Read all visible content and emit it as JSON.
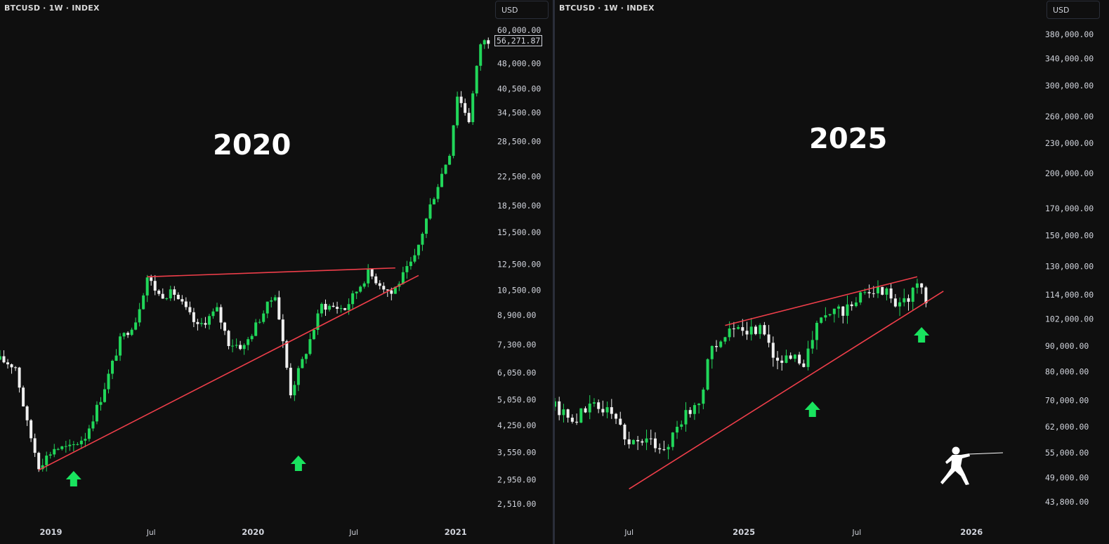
{
  "chart_data": [
    {
      "type": "candlestick",
      "symbol_label": "BTCUSD · 1W · INDEX",
      "currency_button": "USD",
      "title": "2020",
      "y_scale": "log",
      "ylim": [
        2300,
        65000
      ],
      "y_ticks": [
        "60,000.00",
        "48,000.00",
        "40,500.00",
        "34,500.00",
        "28,500.00",
        "22,500.00",
        "18,500.00",
        "15,500.00",
        "12,500.00",
        "10,500.00",
        "8,900.00",
        "7,300.00",
        "6,050.00",
        "5,050.00",
        "4,250.00",
        "3,550.00",
        "2,950.00",
        "2,510.00"
      ],
      "y_tick_values": [
        60000,
        48000,
        40500,
        34500,
        28500,
        22500,
        18500,
        15500,
        12500,
        10500,
        8900,
        7300,
        6050,
        5050,
        4250,
        3550,
        2950,
        2510
      ],
      "x_ticks": [
        "2019",
        "Jul",
        "2020",
        "Jul",
        "2021"
      ],
      "x_tick_dates": [
        "2019-01-01",
        "2019-07-01",
        "2020-01-01",
        "2020-07-01",
        "2021-01-01"
      ],
      "x_range": [
        "2018-10-01",
        "2021-03-07"
      ],
      "current_price": "56,271.87",
      "series": [
        {
          "x": "2018-10-01",
          "close": 6600
        },
        {
          "x": "2018-10-29",
          "close": 6300
        },
        {
          "x": "2018-11-19",
          "close": 4300
        },
        {
          "x": "2018-12-10",
          "close": 3250
        },
        {
          "x": "2019-01-07",
          "close": 3650
        },
        {
          "x": "2019-02-04",
          "close": 3650
        },
        {
          "x": "2019-03-04",
          "close": 3950
        },
        {
          "x": "2019-04-01",
          "close": 5100
        },
        {
          "x": "2019-05-06",
          "close": 7500
        },
        {
          "x": "2019-06-03",
          "close": 8600
        },
        {
          "x": "2019-06-24",
          "close": 11500
        },
        {
          "x": "2019-07-15",
          "close": 10200
        },
        {
          "x": "2019-08-12",
          "close": 10300
        },
        {
          "x": "2019-09-23",
          "close": 8200
        },
        {
          "x": "2019-10-28",
          "close": 9200
        },
        {
          "x": "2019-11-18",
          "close": 7400
        },
        {
          "x": "2019-12-16",
          "close": 7200
        },
        {
          "x": "2020-01-13",
          "close": 8700
        },
        {
          "x": "2020-02-10",
          "close": 10300
        },
        {
          "x": "2020-03-09",
          "close": 5300
        },
        {
          "x": "2020-04-06",
          "close": 7000
        },
        {
          "x": "2020-05-04",
          "close": 9500
        },
        {
          "x": "2020-06-15",
          "close": 9300
        },
        {
          "x": "2020-07-27",
          "close": 11800
        },
        {
          "x": "2020-09-07",
          "close": 10300
        },
        {
          "x": "2020-10-19",
          "close": 13000
        },
        {
          "x": "2020-11-16",
          "close": 18500
        },
        {
          "x": "2020-12-21",
          "close": 26500
        },
        {
          "x": "2021-01-04",
          "close": 39000
        },
        {
          "x": "2021-01-25",
          "close": 33000
        },
        {
          "x": "2021-02-15",
          "close": 55000
        },
        {
          "x": "2021-03-01",
          "close": 56271.87
        }
      ],
      "trendlines": [
        {
          "label": "resistance",
          "from": {
            "x": "2019-06-24",
            "y": 11500
          },
          "to": {
            "x": "2020-09-14",
            "y": 12200
          }
        },
        {
          "label": "support",
          "from": {
            "x": "2018-12-10",
            "y": 3150
          },
          "to": {
            "x": "2020-10-26",
            "y": 11600
          }
        }
      ],
      "annotations": [
        {
          "kind": "up-arrow",
          "x": "2019-02-11"
        },
        {
          "kind": "up-arrow",
          "x": "2020-03-23"
        }
      ]
    },
    {
      "type": "candlestick",
      "symbol_label": "BTCUSD · 1W · INDEX",
      "currency_button": "USD",
      "title": "2025",
      "y_scale": "log",
      "ylim": [
        41000,
        420000
      ],
      "y_ticks": [
        "380,000.00",
        "340,000.00",
        "300,000.00",
        "260,000.00",
        "230,000.00",
        "200,000.00",
        "170,000.00",
        "150,000.00",
        "130,000.00",
        "114,000.00",
        "102,000.00",
        "90,000.00",
        "80,000.00",
        "70,000.00",
        "62,000.00",
        "55,000.00",
        "49,000.00",
        "43,800.00"
      ],
      "y_tick_values": [
        380000,
        340000,
        300000,
        260000,
        230000,
        200000,
        170000,
        150000,
        130000,
        114000,
        102000,
        90000,
        80000,
        70000,
        62000,
        55000,
        49000,
        43800
      ],
      "x_ticks": [
        "Jul",
        "2025",
        "Jul",
        "2026"
      ],
      "x_tick_dates": [
        "2024-07-01",
        "2025-01-01",
        "2025-07-01",
        "2026-01-01"
      ],
      "x_range": [
        "2024-03-04",
        "2026-04-20"
      ],
      "series": [
        {
          "x": "2024-03-04",
          "close": 68000
        },
        {
          "x": "2024-04-01",
          "close": 64000
        },
        {
          "x": "2024-05-06",
          "close": 69000
        },
        {
          "x": "2024-06-03",
          "close": 66000
        },
        {
          "x": "2024-07-01",
          "close": 58000
        },
        {
          "x": "2024-07-29",
          "close": 58000
        },
        {
          "x": "2024-08-26",
          "close": 56000
        },
        {
          "x": "2024-09-23",
          "close": 64000
        },
        {
          "x": "2024-10-21",
          "close": 69000
        },
        {
          "x": "2024-11-11",
          "close": 90000
        },
        {
          "x": "2024-12-09",
          "close": 97000
        },
        {
          "x": "2025-01-06",
          "close": 94000
        },
        {
          "x": "2025-01-27",
          "close": 100000
        },
        {
          "x": "2025-02-24",
          "close": 84000
        },
        {
          "x": "2025-03-17",
          "close": 84000
        },
        {
          "x": "2025-04-07",
          "close": 84000
        },
        {
          "x": "2025-05-05",
          "close": 103000
        },
        {
          "x": "2025-06-02",
          "close": 106000
        },
        {
          "x": "2025-06-30",
          "close": 108000
        },
        {
          "x": "2025-07-14",
          "close": 118000
        },
        {
          "x": "2025-08-11",
          "close": 117000
        },
        {
          "x": "2025-09-01",
          "close": 111000
        },
        {
          "x": "2025-09-22",
          "close": 112000
        },
        {
          "x": "2025-10-06",
          "close": 120000
        },
        {
          "x": "2025-10-20",
          "close": 110000
        }
      ],
      "trendlines": [
        {
          "label": "resistance",
          "from": {
            "x": "2024-12-02",
            "y": 99000
          },
          "to": {
            "x": "2025-10-06",
            "y": 124000
          }
        },
        {
          "label": "support",
          "from": {
            "x": "2024-07-01",
            "y": 46500
          },
          "to": {
            "x": "2025-11-17",
            "y": 116000
          }
        }
      ],
      "annotations": [
        {
          "kind": "up-arrow",
          "x": "2025-04-21"
        },
        {
          "kind": "up-arrow",
          "x": "2025-10-13"
        }
      ]
    }
  ]
}
